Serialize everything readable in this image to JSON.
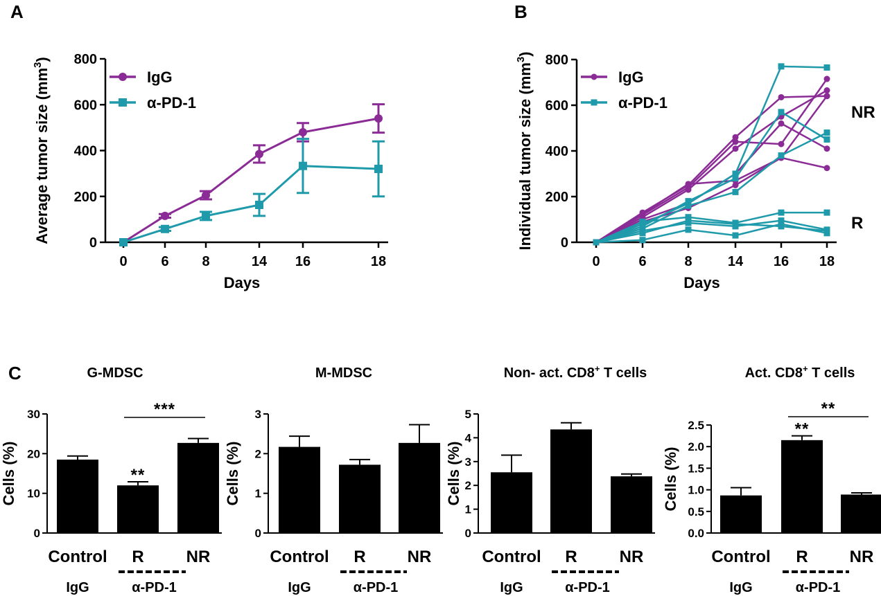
{
  "colors": {
    "igg": "#8B2C96",
    "apd1": "#1F9AAA",
    "bar": "#000000"
  },
  "panels": {
    "a": "A",
    "b": "B",
    "c": "C"
  },
  "chart_data": [
    {
      "id": "A",
      "type": "line",
      "title": "",
      "xlabel": "Days",
      "ylabel": "Average tumor size (mm3)",
      "ylabel_base": "Average tumor size (mm",
      "ylabel_sup": "3",
      "ylabel_end": ")",
      "categories": [
        "0",
        "6",
        "8",
        "14",
        "16",
        "18"
      ],
      "ylim": [
        0,
        800
      ],
      "yticks": [
        "0",
        "200",
        "400",
        "600",
        "800"
      ],
      "series": [
        {
          "name": "IgG",
          "color": "#8B2C96",
          "marker": "circle",
          "values": [
            0,
            115,
            205,
            385,
            480,
            540
          ],
          "errors": [
            0,
            8,
            18,
            38,
            40,
            62
          ]
        },
        {
          "name": "α-PD-1",
          "color": "#1F9AAA",
          "marker": "square",
          "values": [
            0,
            58,
            115,
            163,
            333,
            320
          ],
          "errors": [
            0,
            8,
            18,
            48,
            118,
            120
          ]
        }
      ]
    },
    {
      "id": "B",
      "type": "line",
      "title": "",
      "xlabel": "Days",
      "ylabel": "Individual tumor size (mm3)",
      "ylabel_base": "Individual tumor size (mm",
      "ylabel_sup": "3",
      "ylabel_end": ")",
      "categories": [
        "0",
        "6",
        "8",
        "14",
        "16",
        "18"
      ],
      "ylim": [
        0,
        800
      ],
      "yticks": [
        "0",
        "200",
        "400",
        "600",
        "800"
      ],
      "annotations": [
        "NR",
        "R"
      ],
      "legend": [
        "IgG",
        "α-PD-1"
      ],
      "series": [
        {
          "name": "IgG",
          "color": "#8B2C96",
          "values": [
            0,
            130,
            250,
            460,
            635,
            640
          ]
        },
        {
          "name": "IgG",
          "color": "#8B2C96",
          "values": [
            0,
            120,
            240,
            440,
            430,
            715
          ]
        },
        {
          "name": "IgG",
          "color": "#8B2C96",
          "values": [
            0,
            110,
            230,
            410,
            550,
            665
          ]
        },
        {
          "name": "IgG",
          "color": "#8B2C96",
          "values": [
            0,
            100,
            170,
            300,
            520,
            410
          ]
        },
        {
          "name": "IgG",
          "color": "#8B2C96",
          "values": [
            0,
            125,
            255,
            270,
            370,
            325
          ]
        },
        {
          "name": "IgG",
          "color": "#8B2C96",
          "values": [
            0,
            90,
            150,
            250,
            370,
            640
          ]
        },
        {
          "name": "α-PD-1",
          "color": "#1F9AAA",
          "values": [
            0,
            80,
            170,
            300,
            770,
            765
          ]
        },
        {
          "name": "α-PD-1",
          "color": "#1F9AAA",
          "values": [
            0,
            70,
            180,
            280,
            570,
            450
          ]
        },
        {
          "name": "α-PD-1",
          "color": "#1F9AAA",
          "values": [
            0,
            60,
            160,
            220,
            380,
            480
          ]
        },
        {
          "name": "α-PD-1",
          "color": "#1F9AAA",
          "values": [
            0,
            90,
            110,
            85,
            130,
            130
          ]
        },
        {
          "name": "α-PD-1",
          "color": "#1F9AAA",
          "values": [
            0,
            50,
            85,
            70,
            95,
            55
          ]
        },
        {
          "name": "α-PD-1",
          "color": "#1F9AAA",
          "values": [
            0,
            10,
            55,
            30,
            80,
            40
          ]
        },
        {
          "name": "α-PD-1",
          "color": "#1F9AAA",
          "values": [
            0,
            40,
            95,
            80,
            70,
            50
          ]
        }
      ]
    },
    {
      "id": "C1",
      "type": "bar",
      "title": "G-MDSC",
      "ylabel": "Cells (%)",
      "categories": [
        "Control",
        "R",
        "NR"
      ],
      "values": [
        18.5,
        12,
        22.7
      ],
      "errors": [
        0.9,
        0.9,
        1.1
      ],
      "ylim": [
        0,
        30
      ],
      "yticks": [
        "0",
        "10",
        "20",
        "30"
      ],
      "sig_bar": "***",
      "sig_star": "**",
      "groups": [
        "IgG",
        "α-PD-1"
      ]
    },
    {
      "id": "C2",
      "type": "bar",
      "title": "M-MDSC",
      "ylabel": "Cells (%)",
      "categories": [
        "Control",
        "R",
        "NR"
      ],
      "values": [
        2.17,
        1.72,
        2.27
      ],
      "errors": [
        0.27,
        0.13,
        0.46
      ],
      "ylim": [
        0,
        3
      ],
      "yticks": [
        "0",
        "1",
        "2",
        "3"
      ],
      "groups": [
        "IgG",
        "α-PD-1"
      ]
    },
    {
      "id": "C3",
      "type": "bar",
      "title": "Non- act. CD8+ T cells",
      "title_a": "Non- act. CD8",
      "title_sup": "+",
      "title_b": " T cells",
      "ylabel": "Cells (%)",
      "categories": [
        "Control",
        "R",
        "NR"
      ],
      "values": [
        2.55,
        4.35,
        2.38
      ],
      "errors": [
        0.72,
        0.28,
        0.1
      ],
      "ylim": [
        0,
        5
      ],
      "yticks": [
        "0",
        "1",
        "2",
        "3",
        "4",
        "5"
      ],
      "groups": [
        "IgG",
        "α-PD-1"
      ]
    },
    {
      "id": "C4",
      "type": "bar",
      "title": "Act. CD8+ T cells",
      "title_a": "Act. CD8",
      "title_sup": "+",
      "title_b": " T cells",
      "ylabel": "Cells (%)",
      "categories": [
        "Control",
        "R",
        "NR"
      ],
      "values": [
        0.87,
        2.15,
        0.89
      ],
      "errors": [
        0.18,
        0.1,
        0.04
      ],
      "ylim": [
        0,
        2.5
      ],
      "yticks": [
        "0.0",
        "0.5",
        "1.0",
        "1.5",
        "2.0",
        "2.5"
      ],
      "sig_bar": "**",
      "sig_star": "**",
      "groups": [
        "IgG",
        "α-PD-1"
      ]
    }
  ]
}
